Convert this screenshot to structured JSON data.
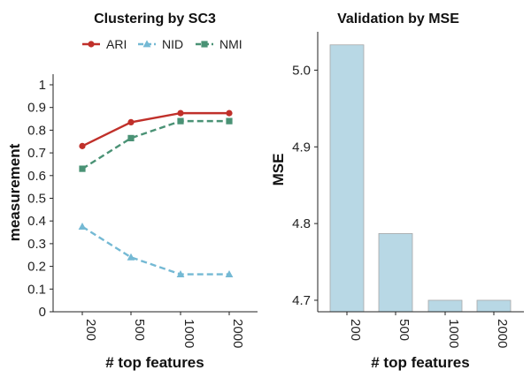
{
  "colors": {
    "ARI": "#c0302a",
    "NID": "#74b9d4",
    "NMI": "#4a9275",
    "bar": "#b8d8e5",
    "bar_edge": "#a8a8a8",
    "axis": "#222222"
  },
  "chart_data": [
    {
      "type": "line",
      "title": "Clustering by SC3",
      "xlabel": "# top features",
      "ylabel": "measurement",
      "categories": [
        "200",
        "500",
        "1000",
        "2000"
      ],
      "yticks": [
        "0",
        "0.1",
        "0.2",
        "0.3",
        "0.4",
        "0.5",
        "0.6",
        "0.7",
        "0.8",
        "0.9",
        "1"
      ],
      "ylim": [
        0,
        1
      ],
      "legend_position": "top",
      "grid": false,
      "series": [
        {
          "name": "ARI",
          "values": [
            0.73,
            0.835,
            0.875,
            0.875
          ],
          "marker": "circle",
          "dash": "solid",
          "color_key": "ARI"
        },
        {
          "name": "NID",
          "values": [
            0.375,
            0.24,
            0.165,
            0.165
          ],
          "marker": "triangle",
          "dash": "dashed",
          "color_key": "NID"
        },
        {
          "name": "NMI",
          "values": [
            0.63,
            0.765,
            0.84,
            0.84
          ],
          "marker": "square",
          "dash": "dashed",
          "color_key": "NMI"
        }
      ]
    },
    {
      "type": "bar",
      "title": "Validation by MSE",
      "xlabel": "# top features",
      "ylabel": "MSE",
      "categories": [
        "200",
        "500",
        "1000",
        "2000"
      ],
      "values": [
        5.033,
        4.787,
        4.7,
        4.7
      ],
      "yticks": [
        "4.7",
        "4.8",
        "4.9",
        "5.0"
      ],
      "ylim": [
        4.685,
        5.05
      ],
      "grid": false
    }
  ]
}
